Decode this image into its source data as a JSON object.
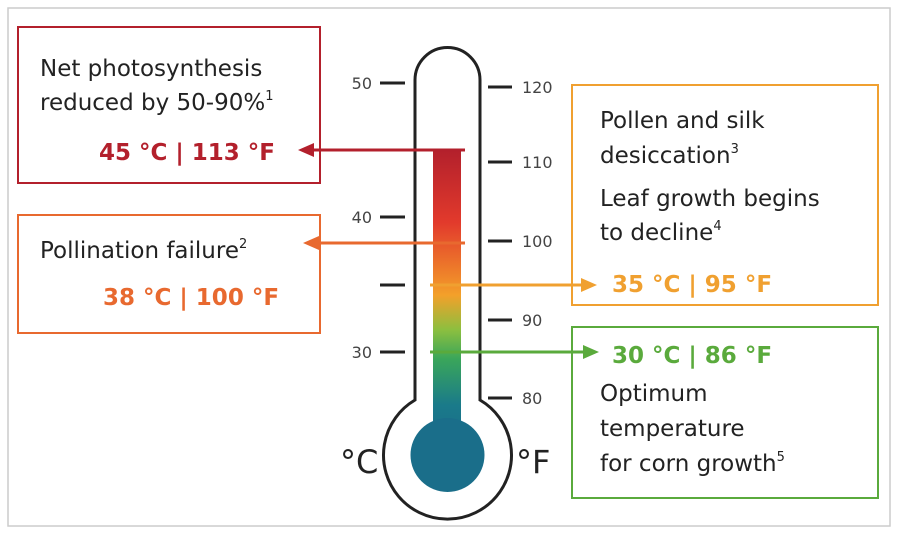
{
  "callouts": [
    {
      "lines": [
        {
          "text": "Net photosynthesis"
        },
        {
          "text": "reduced by 50-90%",
          "sup": "1"
        }
      ],
      "temperature": "45 °C | 113 °F"
    },
    {
      "lines": [
        {
          "text": "Pollination failure",
          "sup": "2"
        }
      ],
      "temperature": "38 °C | 100 °F"
    },
    {
      "lines": [
        {
          "text": "Pollen and silk"
        },
        {
          "text": "desiccation",
          "sup": "3"
        },
        {
          "text": "Leaf growth begins"
        },
        {
          "text": "to decline",
          "sup": "4"
        }
      ],
      "temperature": "35 °C | 95 °F"
    },
    {
      "lines": [
        {
          "text": "Optimum"
        },
        {
          "text": "temperature"
        },
        {
          "text": "for corn growth",
          "sup": "5"
        }
      ],
      "temperature": "30 °C | 86 °F"
    }
  ],
  "celsius_scale": {
    "unit": "°C",
    "ticks": [
      "50",
      "40",
      "30"
    ]
  },
  "fahrenheit_scale": {
    "unit": "°F",
    "ticks": [
      "120",
      "110",
      "100",
      "90",
      "80"
    ]
  }
}
